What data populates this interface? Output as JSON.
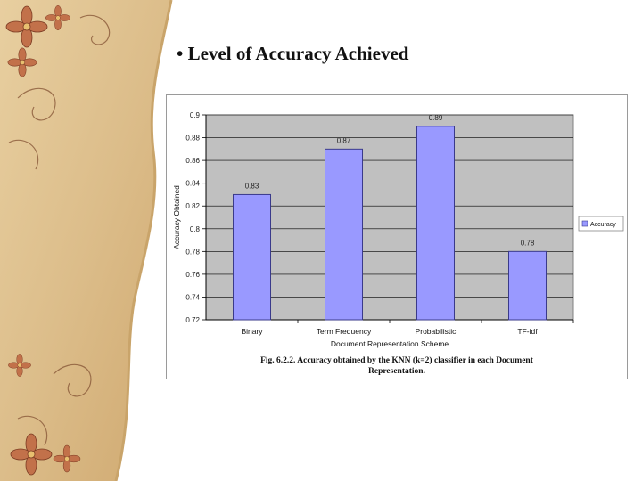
{
  "slide": {
    "bullet": "•",
    "title": "Level of Accuracy Achieved"
  },
  "chart_data": {
    "type": "bar",
    "categories": [
      "Binary",
      "Term Frequency",
      "Probabilistic",
      "TF-idf"
    ],
    "series": [
      {
        "name": "Accuracy",
        "values": [
          0.83,
          0.87,
          0.89,
          0.78
        ]
      }
    ],
    "data_labels": [
      "0.83",
      "0.87",
      "0.89",
      "0.78"
    ],
    "xlabel": "Document Representation Scheme",
    "ylabel": "Accuracy Obtained",
    "ylim": [
      0.72,
      0.9
    ],
    "yticks": [
      "0.9",
      "0.88",
      "0.86",
      "0.84",
      "0.82",
      "0.8",
      "0.78",
      "0.76",
      "0.74",
      "0.72"
    ],
    "grid": true,
    "legend": "right",
    "colors": {
      "bar": "#9999ff",
      "bar_edge": "#3a3a8a",
      "plot_bg": "#c0c0c0"
    },
    "caption_line1": "Fig. 6.2.2. Accuracy obtained by the KNN (k=2) classifier in each Document",
    "caption_line2": "Representation."
  }
}
